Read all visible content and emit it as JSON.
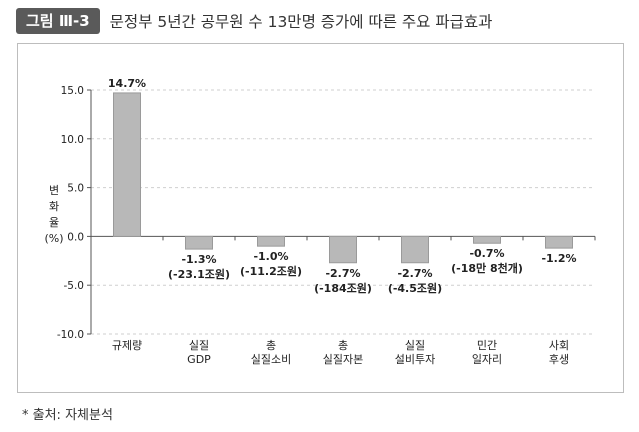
{
  "header": {
    "figure_label": "그림 Ⅲ-3",
    "title": "문정부 5년간 공무원 수 13만명 증가에 따른 주요 파급효과"
  },
  "source_note": "* 출처: 자체분석",
  "chart_data": {
    "type": "bar",
    "ylabel_lines": [
      "변",
      "화",
      "율",
      "(%)"
    ],
    "ylim": [
      -10,
      15
    ],
    "yticks": [
      "15.0",
      "10.0",
      "5.0",
      "0.0",
      "-5.0",
      "-10.0"
    ],
    "ytick_values": [
      15,
      10,
      5,
      0,
      -5,
      -10
    ],
    "grid": "horizontal dashed",
    "categories": [
      [
        "규제량"
      ],
      [
        "실질",
        "GDP"
      ],
      [
        "총",
        "실질소비"
      ],
      [
        "총",
        "실질자본"
      ],
      [
        "실질",
        "설비투자"
      ],
      [
        "민간",
        "일자리"
      ],
      [
        "사회",
        "후생"
      ]
    ],
    "values": [
      14.7,
      -1.3,
      -1.0,
      -2.7,
      -2.7,
      -0.7,
      -1.2
    ],
    "data_labels": [
      [
        "14.7%"
      ],
      [
        "-1.3%",
        "(-23.1조원)"
      ],
      [
        "-1.0%",
        "(-11.2조원)"
      ],
      [
        "-2.7%",
        "(-184조원)"
      ],
      [
        "-2.7%",
        "(-4.5조원)"
      ],
      [
        "-0.7%",
        "(-18만 8천개)"
      ],
      [
        "-1.2%"
      ]
    ],
    "colors": {
      "bar_fill": "#b8b8b8",
      "bar_edge": "#9a9a9a",
      "grid": "#cfcfcf",
      "axis": "#555555"
    }
  }
}
